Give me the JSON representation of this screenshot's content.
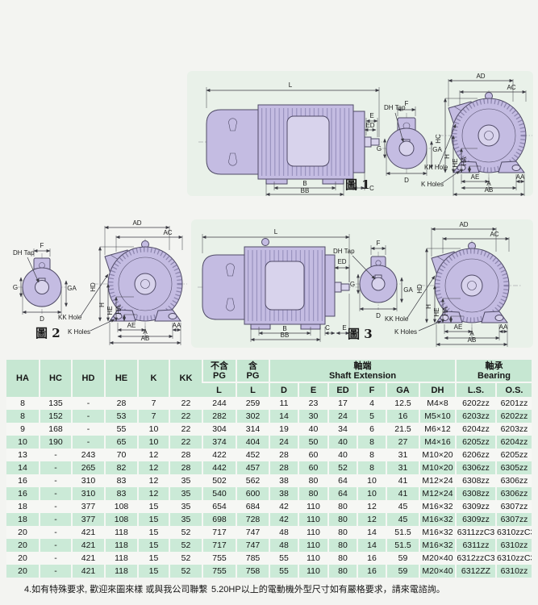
{
  "figures": [
    {
      "title": "圖 1",
      "labels": {
        "L": "L",
        "B": "B",
        "BB": "BB",
        "C": "C",
        "E": "E",
        "ED": "ED",
        "dh_tap": "DH Tap",
        "F": "F",
        "G": "G",
        "GA": "GA",
        "D": "D",
        "AD": "AD",
        "AC": "AC",
        "HC": "HC",
        "H": "H",
        "HE": "HE",
        "HA": "HA",
        "AE": "AE",
        "A": "A",
        "AB": "AB",
        "AA": "AA",
        "kk_hole": "KK Hole",
        "k_holes": "K Holes"
      }
    },
    {
      "title": "圖 2",
      "labels": {
        "dh_tap": "DH Tap",
        "F": "F",
        "G": "G",
        "GA": "GA",
        "D": "D",
        "AD": "AD",
        "AC": "AC",
        "HD": "HD",
        "H": "H",
        "HE": "HE",
        "HA": "HA",
        "AE": "AE",
        "A": "A",
        "AB": "AB",
        "AA": "AA",
        "kk_hole": "KK Hole",
        "k_holes": "K Holes"
      }
    },
    {
      "title": "圖 3",
      "labels": {
        "L": "L",
        "B": "B",
        "BB": "BB",
        "C": "C",
        "E": "E",
        "ED": "ED",
        "dh_tap": "DH Tap",
        "F": "F",
        "G": "G",
        "GA": "GA",
        "D": "D",
        "AD": "AD",
        "AC": "AC",
        "HD": "HD",
        "H": "H",
        "HE": "HE",
        "HA": "HA",
        "AE": "AE",
        "A": "A",
        "AB": "AB",
        "AA": "AA",
        "kk_hole": "KK Hole",
        "k_holes": "K Holes"
      }
    }
  ],
  "table": {
    "cols": [
      "HA",
      "HC",
      "HD",
      "HE",
      "K",
      "KK"
    ],
    "pg_excl": {
      "zh": "不含",
      "en": "PG",
      "sub": "L"
    },
    "pg_incl": {
      "zh": "含",
      "en": "PG",
      "sub": "L"
    },
    "shaft": {
      "zh": "軸端",
      "en": "Shaft Extension",
      "subs": [
        "D",
        "E",
        "ED",
        "F",
        "GA",
        "DH"
      ]
    },
    "bearing": {
      "zh": "軸承",
      "en": "Bearing",
      "subs": [
        "L.S.",
        "O.S."
      ]
    },
    "rows": [
      [
        "8",
        "135",
        "-",
        "28",
        "7",
        "22",
        "244",
        "259",
        "11",
        "23",
        "17",
        "4",
        "12.5",
        "M4×8",
        "6202zz",
        "6201zz"
      ],
      [
        "8",
        "152",
        "-",
        "53",
        "7",
        "22",
        "282",
        "302",
        "14",
        "30",
        "24",
        "5",
        "16",
        "M5×10",
        "6203zz",
        "6202zz"
      ],
      [
        "9",
        "168",
        "-",
        "55",
        "10",
        "22",
        "304",
        "314",
        "19",
        "40",
        "34",
        "6",
        "21.5",
        "M6×12",
        "6204zz",
        "6203zz"
      ],
      [
        "10",
        "190",
        "-",
        "65",
        "10",
        "22",
        "374",
        "404",
        "24",
        "50",
        "40",
        "8",
        "27",
        "M4×16",
        "6205zz",
        "6204zz"
      ],
      [
        "13",
        "-",
        "243",
        "70",
        "12",
        "28",
        "422",
        "452",
        "28",
        "60",
        "40",
        "8",
        "31",
        "M10×20",
        "6206zz",
        "6205zz"
      ],
      [
        "14",
        "-",
        "265",
        "82",
        "12",
        "28",
        "442",
        "457",
        "28",
        "60",
        "52",
        "8",
        "31",
        "M10×20",
        "6306zz",
        "6305zz"
      ],
      [
        "16",
        "-",
        "310",
        "83",
        "12",
        "35",
        "502",
        "562",
        "38",
        "80",
        "64",
        "10",
        "41",
        "M12×24",
        "6308zz",
        "6306zz"
      ],
      [
        "16",
        "-",
        "310",
        "83",
        "12",
        "35",
        "540",
        "600",
        "38",
        "80",
        "64",
        "10",
        "41",
        "M12×24",
        "6308zz",
        "6306zz"
      ],
      [
        "18",
        "-",
        "377",
        "108",
        "15",
        "35",
        "654",
        "684",
        "42",
        "110",
        "80",
        "12",
        "45",
        "M16×32",
        "6309zz",
        "6307zz"
      ],
      [
        "18",
        "-",
        "377",
        "108",
        "15",
        "35",
        "698",
        "728",
        "42",
        "110",
        "80",
        "12",
        "45",
        "M16×32",
        "6309zz",
        "6307zz"
      ],
      [
        "20",
        "-",
        "421",
        "118",
        "15",
        "52",
        "717",
        "747",
        "48",
        "110",
        "80",
        "14",
        "51.5",
        "M16×32",
        "6311zzC3",
        "6310zzC3"
      ],
      [
        "20",
        "-",
        "421",
        "118",
        "15",
        "52",
        "717",
        "747",
        "48",
        "110",
        "80",
        "14",
        "51.5",
        "M16×32",
        "6311zz",
        "6310zz"
      ],
      [
        "20",
        "-",
        "421",
        "118",
        "15",
        "52",
        "755",
        "785",
        "55",
        "110",
        "80",
        "16",
        "59",
        "M20×40",
        "6312zzC3",
        "6310zzC3"
      ],
      [
        "20",
        "-",
        "421",
        "118",
        "15",
        "52",
        "755",
        "758",
        "55",
        "110",
        "80",
        "16",
        "59",
        "M20×40",
        "6312ZZ",
        "6310zz"
      ]
    ]
  },
  "notes": [
    "4.如有特殊要求, 歡迎來圖來樣 或與我公司聯繫",
    "5.20HP以上的電動機外型尺寸如有嚴格要求，請來電諮詢。"
  ],
  "colors": {
    "panel_mint": "#e9f1e9",
    "header_mint": "#c6e7d2",
    "row_mint": "#cbead7",
    "row_white": "#f6f7f4",
    "motor_lavender": "#c4bce2"
  }
}
